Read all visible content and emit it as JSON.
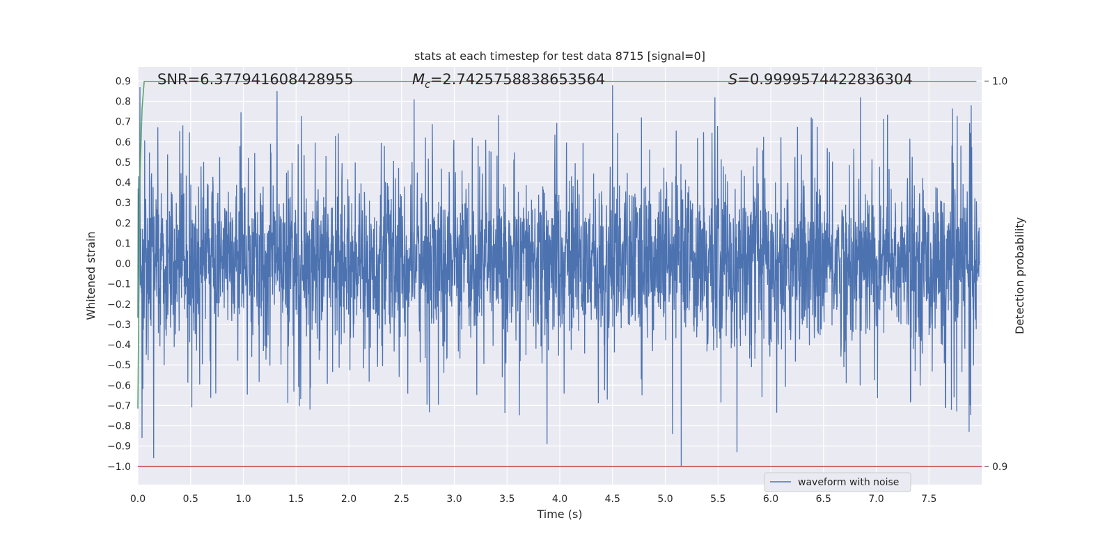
{
  "chart_data": {
    "type": "line",
    "title": "stats at each timestep for test data 8715 [signal=0]",
    "xlabel": "Time (s)",
    "ylabel": "Whitened strain",
    "y2label": "Detection probability",
    "xlim": [
      0.0,
      8.0
    ],
    "ylim": [
      -1.09,
      0.97
    ],
    "y2lim": [
      0.9,
      1.0
    ],
    "x_ticks": [
      "0.0",
      "0.5",
      "1.0",
      "1.5",
      "2.0",
      "2.5",
      "3.0",
      "3.5",
      "4.0",
      "4.5",
      "5.0",
      "5.5",
      "6.0",
      "6.5",
      "7.0",
      "7.5"
    ],
    "y_ticks": [
      "0.9",
      "0.8",
      "0.7",
      "0.6",
      "0.5",
      "0.4",
      "0.3",
      "0.2",
      "0.1",
      "0.0",
      "−0.1",
      "−0.2",
      "−0.3",
      "−0.4",
      "−0.5",
      "−0.6",
      "−0.7",
      "−0.8",
      "−0.9",
      "−1.0"
    ],
    "y2_ticks": [
      "1.0",
      "0.9"
    ],
    "grid": true,
    "legend_position": "lower-right",
    "colors": {
      "plot_background": "#eaeaf2",
      "grid": "#ffffff",
      "waveform": "#4c72b0",
      "probability": "#55a868",
      "threshold": "#c44e52"
    },
    "annotations": {
      "snr": "SNR=6.377941608428955",
      "mc_symbol": "M",
      "mc_subscript": "c",
      "mc_value": "=2.7425758838653564",
      "s_symbol": "S",
      "s_value": "=0.9999574422836304"
    },
    "series": [
      {
        "name": "waveform with noise",
        "axis": "left",
        "description_stats": {
          "typical_abs_range": 0.35
        },
        "peaks_high": [
          [
            0.02,
            0.87
          ],
          [
            1.32,
            0.85
          ],
          [
            2.62,
            0.81
          ],
          [
            4.5,
            0.88
          ],
          [
            5.47,
            0.82
          ],
          [
            6.85,
            0.82
          ],
          [
            7.9,
            0.78
          ]
        ],
        "peaks_low": [
          [
            0.04,
            -0.86
          ],
          [
            0.15,
            -0.96
          ],
          [
            3.88,
            -0.89
          ],
          [
            5.07,
            -0.84
          ],
          [
            5.15,
            -1.0
          ],
          [
            5.68,
            -0.93
          ],
          [
            7.88,
            -0.83
          ]
        ]
      },
      {
        "name": "",
        "axis": "right",
        "x": [
          0.0,
          0.02,
          0.04,
          0.06,
          7.95
        ],
        "values": [
          0.915,
          0.975,
          0.993,
          0.9999,
          0.9999
        ]
      },
      {
        "name": "",
        "axis": "left",
        "x": [
          0.0,
          7.95
        ],
        "values": [
          -1.0,
          -1.0
        ]
      }
    ]
  }
}
